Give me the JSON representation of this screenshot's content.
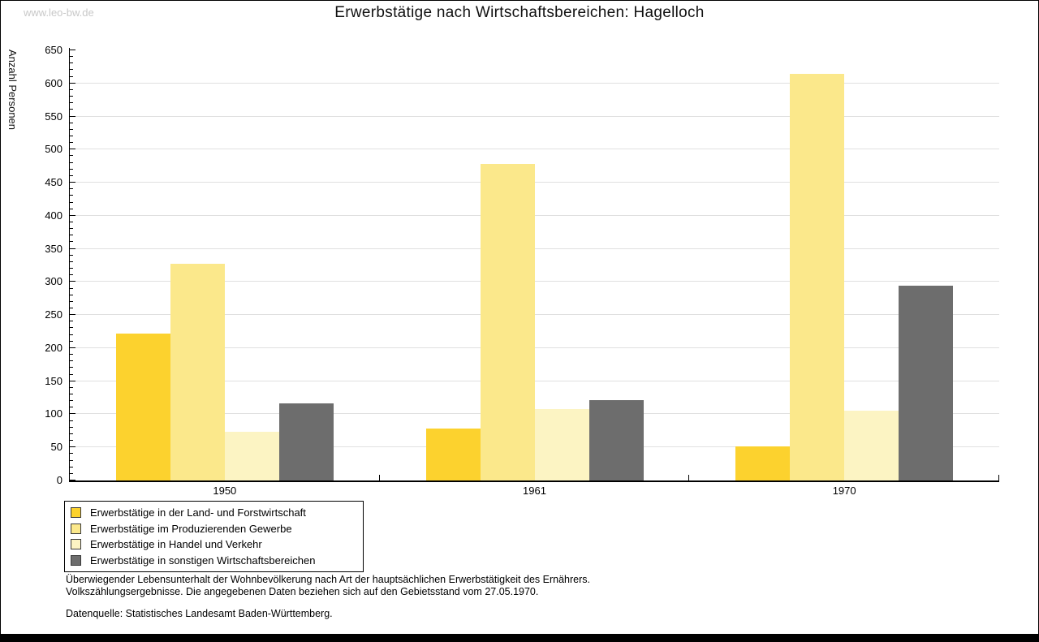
{
  "watermark": "www.leo-bw.de",
  "title": "Erwerbstätige nach Wirtschaftsbereichen: Hagelloch",
  "chart_data": {
    "type": "bar",
    "title": "Erwerbstätige nach Wirtschaftsbereichen: Hagelloch",
    "xlabel": "",
    "ylabel": "Anzahl Personen",
    "ylim": [
      0,
      650
    ],
    "ytick_step": 50,
    "minor_tick_step": 10,
    "grid": true,
    "legend_position": "bottom-left",
    "categories": [
      "1950",
      "1961",
      "1970"
    ],
    "series": [
      {
        "name": "Erwerbstätige in der Land- und Forstwirtschaft",
        "color": "#FCD22E",
        "values": [
          222,
          79,
          52
        ]
      },
      {
        "name": "Erwerbstätige im Produzierenden Gewerbe",
        "color": "#FBE88B",
        "values": [
          328,
          478,
          615
        ]
      },
      {
        "name": "Erwerbstätige in Handel und Verkehr",
        "color": "#FCF4C3",
        "values": [
          73,
          108,
          106
        ]
      },
      {
        "name": "Erwerbstätige in sonstigen Wirtschaftsbereichen",
        "color": "#6D6D6D",
        "values": [
          116,
          121,
          294
        ]
      }
    ],
    "axis_color": "#000000",
    "gridline_color": "#E0E0E0"
  },
  "footnotes": {
    "line1": "Überwiegender Lebensunterhalt der Wohnbevölkerung nach Art der hauptsächlichen Erwerbstätigkeit des Ernährers.",
    "line2": "Volkszählungsergebnisse. Die angegebenen Daten beziehen sich auf den Gebietsstand vom 27.05.1970.",
    "source": "Datenquelle: Statistisches Landesamt Baden-Württemberg."
  }
}
